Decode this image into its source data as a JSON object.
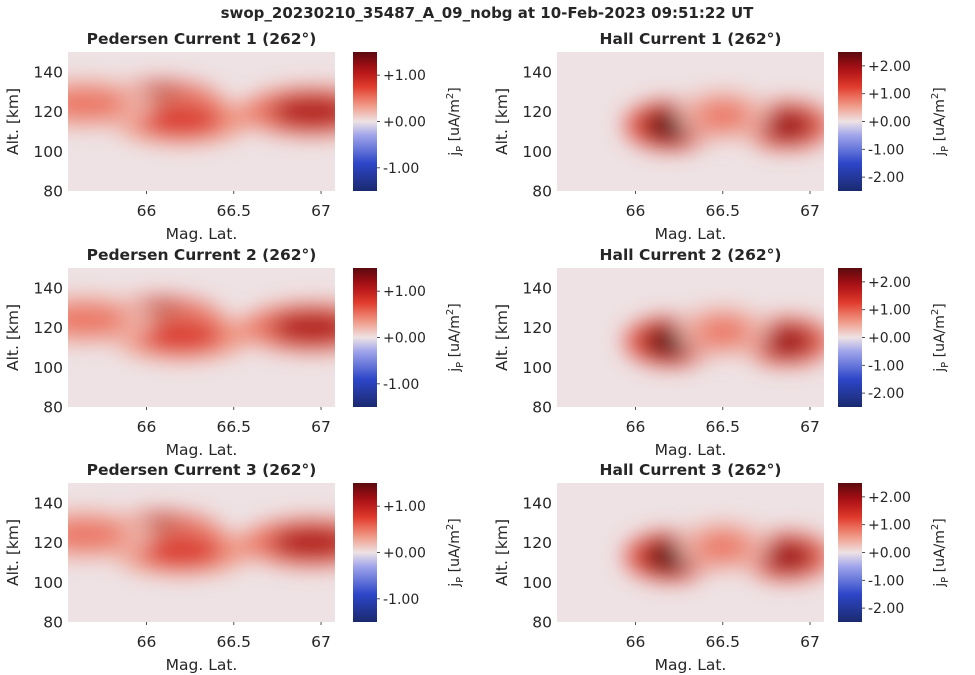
{
  "figure": {
    "title": "swop_20230210_35487_A_09_nobg at 10-Feb-2023 09:51:22 UT"
  },
  "chart_data": [
    {
      "type": "heatmap",
      "title": "Pedersen Current 1 (262°)",
      "xlabel": "Mag. Lat.",
      "ylabel": "Alt. [km]",
      "xlim": [
        65.55,
        67.08
      ],
      "ylim": [
        80,
        150
      ],
      "xticks": [
        "66",
        "66.5",
        "67"
      ],
      "yticks": [
        "80",
        "100",
        "120",
        "140"
      ],
      "colorbar": {
        "label": "j_P [uA/m^2]",
        "range": [
          -1.5,
          1.5
        ],
        "ticks": [
          "+1.00",
          "+0.00",
          "-1.00"
        ],
        "colormap": "blue-white-red"
      },
      "blobs": [
        {
          "lat": 66.05,
          "alt": 123,
          "peak": 1.45
        },
        {
          "lat": 66.2,
          "alt": 116,
          "peak": 0.8
        },
        {
          "lat": 66.95,
          "alt": 120,
          "peak": 1.1
        },
        {
          "lat": 65.65,
          "alt": 124,
          "peak": 0.5
        }
      ]
    },
    {
      "type": "heatmap",
      "title": "Hall Current 1 (262°)",
      "xlabel": "Mag. Lat.",
      "ylabel": "Alt. [km]",
      "xlim": [
        65.55,
        67.08
      ],
      "ylim": [
        80,
        150
      ],
      "xticks": [
        "66",
        "66.5",
        "67"
      ],
      "yticks": [
        "80",
        "100",
        "120",
        "140"
      ],
      "colorbar": {
        "label": "j_P [uA/m^2]",
        "range": [
          -2.5,
          2.5
        ],
        "ticks": [
          "+2.00",
          "+1.00",
          "+0.00",
          "-1.00",
          "-2.00"
        ],
        "colormap": "blue-white-red"
      },
      "blobs": [
        {
          "lat": 66.2,
          "alt": 113,
          "peak": 2.5
        },
        {
          "lat": 66.87,
          "alt": 113,
          "peak": 2.0
        },
        {
          "lat": 66.5,
          "alt": 118,
          "peak": 0.8
        }
      ]
    },
    {
      "type": "heatmap",
      "title": "Pedersen Current 2 (262°)",
      "xlabel": "Mag. Lat.",
      "ylabel": "Alt. [km]",
      "xlim": [
        65.55,
        67.08
      ],
      "ylim": [
        80,
        150
      ],
      "xticks": [
        "66",
        "66.5",
        "67"
      ],
      "yticks": [
        "80",
        "100",
        "120",
        "140"
      ],
      "colorbar": {
        "label": "j_P [uA/m^2]",
        "range": [
          -1.5,
          1.5
        ],
        "ticks": [
          "+1.00",
          "+0.00",
          "-1.00"
        ],
        "colormap": "blue-white-red"
      },
      "blobs": [
        {
          "lat": 66.05,
          "alt": 123,
          "peak": 1.45
        },
        {
          "lat": 66.2,
          "alt": 116,
          "peak": 0.8
        },
        {
          "lat": 66.95,
          "alt": 120,
          "peak": 1.1
        },
        {
          "lat": 65.65,
          "alt": 124,
          "peak": 0.5
        }
      ]
    },
    {
      "type": "heatmap",
      "title": "Hall Current 2 (262°)",
      "xlabel": "Mag. Lat.",
      "ylabel": "Alt. [km]",
      "xlim": [
        65.55,
        67.08
      ],
      "ylim": [
        80,
        150
      ],
      "xticks": [
        "66",
        "66.5",
        "67"
      ],
      "yticks": [
        "80",
        "100",
        "120",
        "140"
      ],
      "colorbar": {
        "label": "j_P [uA/m^2]",
        "range": [
          -2.5,
          2.5
        ],
        "ticks": [
          "+2.00",
          "+1.00",
          "+0.00",
          "-1.00",
          "-2.00"
        ],
        "colormap": "blue-white-red"
      },
      "blobs": [
        {
          "lat": 66.2,
          "alt": 113,
          "peak": 2.5
        },
        {
          "lat": 66.87,
          "alt": 113,
          "peak": 2.0
        },
        {
          "lat": 66.5,
          "alt": 118,
          "peak": 0.8
        }
      ]
    },
    {
      "type": "heatmap",
      "title": "Pedersen Current 3 (262°)",
      "xlabel": "Mag. Lat.",
      "ylabel": "Alt. [km]",
      "xlim": [
        65.55,
        67.08
      ],
      "ylim": [
        80,
        150
      ],
      "xticks": [
        "66",
        "66.5",
        "67"
      ],
      "yticks": [
        "80",
        "100",
        "120",
        "140"
      ],
      "colorbar": {
        "label": "j_P [uA/m^2]",
        "range": [
          -1.5,
          1.5
        ],
        "ticks": [
          "+1.00",
          "+0.00",
          "-1.00"
        ],
        "colormap": "blue-white-red"
      },
      "blobs": [
        {
          "lat": 66.05,
          "alt": 123,
          "peak": 1.45
        },
        {
          "lat": 66.2,
          "alt": 116,
          "peak": 0.8
        },
        {
          "lat": 66.95,
          "alt": 120,
          "peak": 1.1
        },
        {
          "lat": 65.65,
          "alt": 124,
          "peak": 0.5
        }
      ]
    },
    {
      "type": "heatmap",
      "title": "Hall Current 3 (262°)",
      "xlabel": "Mag. Lat.",
      "ylabel": "Alt. [km]",
      "xlim": [
        65.55,
        67.08
      ],
      "ylim": [
        80,
        150
      ],
      "xticks": [
        "66",
        "66.5",
        "67"
      ],
      "yticks": [
        "80",
        "100",
        "120",
        "140"
      ],
      "colorbar": {
        "label": "j_P [uA/m^2]",
        "range": [
          -2.5,
          2.5
        ],
        "ticks": [
          "+2.00",
          "+1.00",
          "+0.00",
          "-1.00",
          "-2.00"
        ],
        "colormap": "blue-white-red"
      },
      "blobs": [
        {
          "lat": 66.2,
          "alt": 113,
          "peak": 2.5
        },
        {
          "lat": 66.87,
          "alt": 113,
          "peak": 2.0
        },
        {
          "lat": 66.5,
          "alt": 118,
          "peak": 0.8
        }
      ]
    }
  ]
}
